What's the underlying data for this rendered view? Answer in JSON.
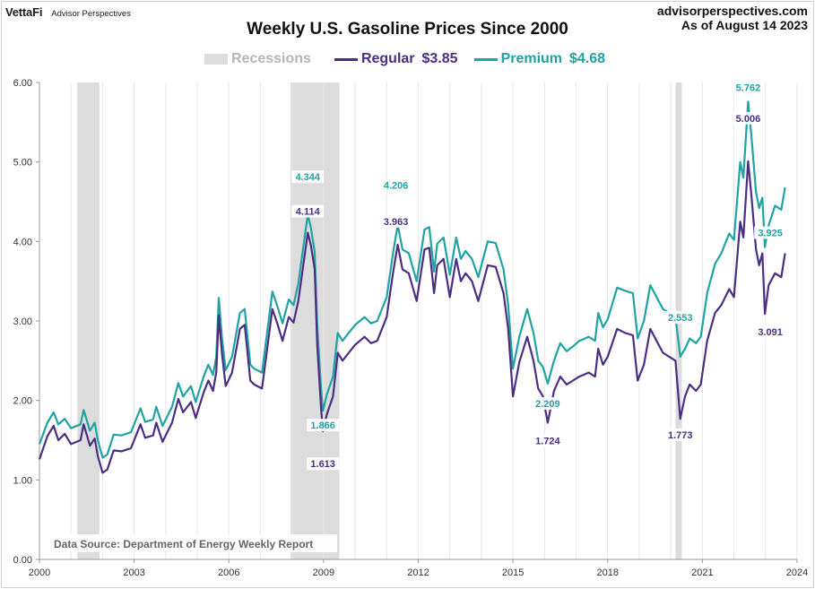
{
  "brand": {
    "logo": "VettaFi",
    "tagline": "Advisor Perspectives"
  },
  "header": {
    "site": "advisorperspectives.com",
    "as_of": "As of August 14 2023"
  },
  "chart_data": {
    "type": "line",
    "title": "Weekly U.S. Gasoline Prices Since 2000",
    "xlim": [
      2000,
      2024
    ],
    "ylim": [
      0,
      6
    ],
    "x_ticks": [
      "2000",
      "2003",
      "2006",
      "2009",
      "2012",
      "2015",
      "2018",
      "2021",
      "2024"
    ],
    "y_ticks": [
      "0.00",
      "1.00",
      "2.00",
      "3.00",
      "4.00",
      "5.00",
      "6.00"
    ],
    "grid": {
      "vertical": true,
      "horizontal": false
    },
    "legend": [
      {
        "label": "Recessions",
        "value": ""
      },
      {
        "label": "Regular",
        "value": "$3.85"
      },
      {
        "label": "Premium",
        "value": "$4.68"
      }
    ],
    "recessions": [
      [
        2001.2,
        2001.9
      ],
      [
        2007.95,
        2009.5
      ],
      [
        2020.15,
        2020.35
      ]
    ],
    "colors": {
      "regular": "#4b2e83",
      "premium": "#1fa3a3",
      "recession": "#dcdcdc",
      "grid": "#e6e6e6"
    },
    "series": [
      {
        "name": "Regular",
        "points": [
          [
            2000.0,
            1.26
          ],
          [
            2000.25,
            1.55
          ],
          [
            2000.45,
            1.68
          ],
          [
            2000.6,
            1.5
          ],
          [
            2000.8,
            1.58
          ],
          [
            2001.0,
            1.45
          ],
          [
            2001.3,
            1.5
          ],
          [
            2001.4,
            1.7
          ],
          [
            2001.6,
            1.43
          ],
          [
            2001.75,
            1.52
          ],
          [
            2001.85,
            1.3
          ],
          [
            2002.0,
            1.09
          ],
          [
            2002.15,
            1.13
          ],
          [
            2002.35,
            1.37
          ],
          [
            2002.6,
            1.36
          ],
          [
            2002.9,
            1.4
          ],
          [
            2003.2,
            1.7
          ],
          [
            2003.35,
            1.53
          ],
          [
            2003.6,
            1.56
          ],
          [
            2003.7,
            1.72
          ],
          [
            2003.9,
            1.48
          ],
          [
            2004.2,
            1.72
          ],
          [
            2004.4,
            2.02
          ],
          [
            2004.55,
            1.85
          ],
          [
            2004.8,
            1.98
          ],
          [
            2004.95,
            1.78
          ],
          [
            2005.2,
            2.1
          ],
          [
            2005.35,
            2.25
          ],
          [
            2005.5,
            2.12
          ],
          [
            2005.6,
            2.35
          ],
          [
            2005.68,
            3.07
          ],
          [
            2005.78,
            2.6
          ],
          [
            2005.9,
            2.18
          ],
          [
            2006.1,
            2.35
          ],
          [
            2006.35,
            2.9
          ],
          [
            2006.5,
            2.95
          ],
          [
            2006.68,
            2.25
          ],
          [
            2006.8,
            2.2
          ],
          [
            2007.05,
            2.15
          ],
          [
            2007.38,
            3.15
          ],
          [
            2007.55,
            2.95
          ],
          [
            2007.7,
            2.75
          ],
          [
            2007.9,
            3.05
          ],
          [
            2008.05,
            2.98
          ],
          [
            2008.2,
            3.25
          ],
          [
            2008.5,
            4.11
          ],
          [
            2008.6,
            3.95
          ],
          [
            2008.72,
            3.65
          ],
          [
            2008.8,
            2.7
          ],
          [
            2008.92,
            1.9
          ],
          [
            2008.98,
            1.61
          ],
          [
            2009.1,
            1.82
          ],
          [
            2009.3,
            2.05
          ],
          [
            2009.45,
            2.6
          ],
          [
            2009.6,
            2.5
          ],
          [
            2009.8,
            2.6
          ],
          [
            2010.0,
            2.7
          ],
          [
            2010.3,
            2.8
          ],
          [
            2010.5,
            2.72
          ],
          [
            2010.7,
            2.75
          ],
          [
            2011.0,
            3.05
          ],
          [
            2011.2,
            3.6
          ],
          [
            2011.35,
            3.96
          ],
          [
            2011.5,
            3.65
          ],
          [
            2011.7,
            3.6
          ],
          [
            2011.95,
            3.25
          ],
          [
            2012.2,
            3.9
          ],
          [
            2012.35,
            3.92
          ],
          [
            2012.5,
            3.35
          ],
          [
            2012.6,
            3.7
          ],
          [
            2012.8,
            3.78
          ],
          [
            2013.0,
            3.3
          ],
          [
            2013.2,
            3.78
          ],
          [
            2013.35,
            3.5
          ],
          [
            2013.5,
            3.6
          ],
          [
            2013.7,
            3.5
          ],
          [
            2013.9,
            3.25
          ],
          [
            2014.2,
            3.7
          ],
          [
            2014.45,
            3.68
          ],
          [
            2014.7,
            3.35
          ],
          [
            2014.85,
            2.9
          ],
          [
            2015.0,
            2.05
          ],
          [
            2015.2,
            2.48
          ],
          [
            2015.45,
            2.8
          ],
          [
            2015.65,
            2.5
          ],
          [
            2015.8,
            2.15
          ],
          [
            2015.95,
            2.05
          ],
          [
            2016.1,
            1.72
          ],
          [
            2016.3,
            2.12
          ],
          [
            2016.5,
            2.3
          ],
          [
            2016.7,
            2.2
          ],
          [
            2016.9,
            2.25
          ],
          [
            2017.1,
            2.3
          ],
          [
            2017.4,
            2.35
          ],
          [
            2017.6,
            2.3
          ],
          [
            2017.7,
            2.65
          ],
          [
            2017.85,
            2.45
          ],
          [
            2018.0,
            2.55
          ],
          [
            2018.3,
            2.9
          ],
          [
            2018.55,
            2.85
          ],
          [
            2018.8,
            2.82
          ],
          [
            2018.95,
            2.25
          ],
          [
            2019.15,
            2.45
          ],
          [
            2019.35,
            2.9
          ],
          [
            2019.55,
            2.75
          ],
          [
            2019.75,
            2.6
          ],
          [
            2019.95,
            2.55
          ],
          [
            2020.15,
            2.5
          ],
          [
            2020.3,
            1.77
          ],
          [
            2020.45,
            2.05
          ],
          [
            2020.6,
            2.2
          ],
          [
            2020.8,
            2.12
          ],
          [
            2020.95,
            2.2
          ],
          [
            2021.15,
            2.75
          ],
          [
            2021.4,
            3.1
          ],
          [
            2021.6,
            3.2
          ],
          [
            2021.85,
            3.4
          ],
          [
            2022.0,
            3.3
          ],
          [
            2022.2,
            4.25
          ],
          [
            2022.3,
            4.05
          ],
          [
            2022.45,
            5.01
          ],
          [
            2022.55,
            4.6
          ],
          [
            2022.7,
            3.9
          ],
          [
            2022.8,
            3.7
          ],
          [
            2022.9,
            3.85
          ],
          [
            2022.98,
            3.09
          ],
          [
            2023.1,
            3.45
          ],
          [
            2023.3,
            3.6
          ],
          [
            2023.5,
            3.55
          ],
          [
            2023.62,
            3.85
          ]
        ]
      },
      {
        "name": "Premium",
        "points": [
          [
            2000.0,
            1.45
          ],
          [
            2000.25,
            1.72
          ],
          [
            2000.45,
            1.85
          ],
          [
            2000.6,
            1.7
          ],
          [
            2000.8,
            1.77
          ],
          [
            2001.0,
            1.65
          ],
          [
            2001.3,
            1.7
          ],
          [
            2001.4,
            1.88
          ],
          [
            2001.6,
            1.62
          ],
          [
            2001.75,
            1.72
          ],
          [
            2001.85,
            1.5
          ],
          [
            2002.0,
            1.28
          ],
          [
            2002.15,
            1.32
          ],
          [
            2002.35,
            1.57
          ],
          [
            2002.6,
            1.56
          ],
          [
            2002.9,
            1.6
          ],
          [
            2003.2,
            1.9
          ],
          [
            2003.35,
            1.73
          ],
          [
            2003.6,
            1.76
          ],
          [
            2003.7,
            1.92
          ],
          [
            2003.9,
            1.68
          ],
          [
            2004.2,
            1.92
          ],
          [
            2004.4,
            2.22
          ],
          [
            2004.55,
            2.05
          ],
          [
            2004.8,
            2.18
          ],
          [
            2004.95,
            1.98
          ],
          [
            2005.2,
            2.3
          ],
          [
            2005.35,
            2.45
          ],
          [
            2005.5,
            2.32
          ],
          [
            2005.6,
            2.55
          ],
          [
            2005.68,
            3.29
          ],
          [
            2005.78,
            2.8
          ],
          [
            2005.9,
            2.38
          ],
          [
            2006.1,
            2.55
          ],
          [
            2006.35,
            3.1
          ],
          [
            2006.5,
            3.15
          ],
          [
            2006.68,
            2.45
          ],
          [
            2006.8,
            2.4
          ],
          [
            2007.05,
            2.35
          ],
          [
            2007.38,
            3.37
          ],
          [
            2007.55,
            3.17
          ],
          [
            2007.7,
            2.97
          ],
          [
            2007.9,
            3.27
          ],
          [
            2008.05,
            3.2
          ],
          [
            2008.2,
            3.47
          ],
          [
            2008.5,
            4.34
          ],
          [
            2008.6,
            4.17
          ],
          [
            2008.72,
            3.87
          ],
          [
            2008.8,
            2.95
          ],
          [
            2008.92,
            2.15
          ],
          [
            2008.98,
            1.87
          ],
          [
            2009.1,
            2.07
          ],
          [
            2009.3,
            2.3
          ],
          [
            2009.45,
            2.85
          ],
          [
            2009.6,
            2.75
          ],
          [
            2009.8,
            2.85
          ],
          [
            2010.0,
            2.95
          ],
          [
            2010.3,
            3.05
          ],
          [
            2010.5,
            2.97
          ],
          [
            2010.7,
            3.0
          ],
          [
            2011.0,
            3.3
          ],
          [
            2011.2,
            3.85
          ],
          [
            2011.35,
            4.21
          ],
          [
            2011.5,
            3.9
          ],
          [
            2011.7,
            3.85
          ],
          [
            2011.95,
            3.5
          ],
          [
            2012.2,
            4.15
          ],
          [
            2012.35,
            4.18
          ],
          [
            2012.5,
            3.62
          ],
          [
            2012.6,
            3.97
          ],
          [
            2012.8,
            4.05
          ],
          [
            2013.0,
            3.58
          ],
          [
            2013.2,
            4.05
          ],
          [
            2013.35,
            3.78
          ],
          [
            2013.5,
            3.88
          ],
          [
            2013.7,
            3.78
          ],
          [
            2013.9,
            3.55
          ],
          [
            2014.2,
            4.0
          ],
          [
            2014.45,
            3.98
          ],
          [
            2014.7,
            3.65
          ],
          [
            2014.85,
            3.2
          ],
          [
            2015.0,
            2.4
          ],
          [
            2015.2,
            2.8
          ],
          [
            2015.45,
            3.15
          ],
          [
            2015.65,
            2.85
          ],
          [
            2015.8,
            2.5
          ],
          [
            2015.95,
            2.42
          ],
          [
            2016.1,
            2.21
          ],
          [
            2016.3,
            2.5
          ],
          [
            2016.5,
            2.72
          ],
          [
            2016.7,
            2.62
          ],
          [
            2016.9,
            2.68
          ],
          [
            2017.1,
            2.75
          ],
          [
            2017.4,
            2.8
          ],
          [
            2017.6,
            2.75
          ],
          [
            2017.7,
            3.1
          ],
          [
            2017.85,
            2.92
          ],
          [
            2018.0,
            3.02
          ],
          [
            2018.3,
            3.42
          ],
          [
            2018.55,
            3.38
          ],
          [
            2018.8,
            3.35
          ],
          [
            2018.95,
            2.78
          ],
          [
            2019.15,
            3.0
          ],
          [
            2019.35,
            3.45
          ],
          [
            2019.55,
            3.3
          ],
          [
            2019.75,
            3.15
          ],
          [
            2019.95,
            3.1
          ],
          [
            2020.15,
            3.05
          ],
          [
            2020.3,
            2.55
          ],
          [
            2020.45,
            2.65
          ],
          [
            2020.6,
            2.78
          ],
          [
            2020.8,
            2.72
          ],
          [
            2020.95,
            2.8
          ],
          [
            2021.15,
            3.35
          ],
          [
            2021.4,
            3.72
          ],
          [
            2021.6,
            3.85
          ],
          [
            2021.85,
            4.1
          ],
          [
            2022.0,
            4.02
          ],
          [
            2022.2,
            5.0
          ],
          [
            2022.3,
            4.8
          ],
          [
            2022.45,
            5.76
          ],
          [
            2022.55,
            5.35
          ],
          [
            2022.7,
            4.62
          ],
          [
            2022.8,
            4.42
          ],
          [
            2022.9,
            4.55
          ],
          [
            2022.98,
            3.93
          ],
          [
            2023.1,
            4.2
          ],
          [
            2023.3,
            4.45
          ],
          [
            2023.5,
            4.4
          ],
          [
            2023.62,
            4.68
          ]
        ]
      }
    ],
    "annotations": [
      {
        "label": "4.344",
        "series": "Premium",
        "x": 2008.5,
        "y": 4.34
      },
      {
        "label": "4.114",
        "series": "Regular",
        "x": 2008.5,
        "y": 4.11
      },
      {
        "label": "1.866",
        "series": "Premium",
        "x": 2008.98,
        "y": 1.87
      },
      {
        "label": "1.613",
        "series": "Regular",
        "x": 2008.98,
        "y": 1.61
      },
      {
        "label": "4.206",
        "series": "Premium",
        "x": 2011.35,
        "y": 4.21
      },
      {
        "label": "3.963",
        "series": "Regular",
        "x": 2011.35,
        "y": 3.96
      },
      {
        "label": "2.209",
        "series": "Premium",
        "x": 2016.1,
        "y": 2.21
      },
      {
        "label": "1.724",
        "series": "Regular",
        "x": 2016.1,
        "y": 1.72
      },
      {
        "label": "2.553",
        "series": "Premium",
        "x": 2020.3,
        "y": 2.55
      },
      {
        "label": "1.773",
        "series": "Regular",
        "x": 2020.3,
        "y": 1.77
      },
      {
        "label": "5.762",
        "series": "Premium",
        "x": 2022.45,
        "y": 5.76
      },
      {
        "label": "5.006",
        "series": "Regular",
        "x": 2022.45,
        "y": 5.01
      },
      {
        "label": "3.925",
        "series": "Premium",
        "x": 2022.98,
        "y": 3.93
      },
      {
        "label": "3.091",
        "series": "Regular",
        "x": 2022.98,
        "y": 3.09
      }
    ],
    "source_note": "Data Source: Department of Energy Weekly Report"
  }
}
